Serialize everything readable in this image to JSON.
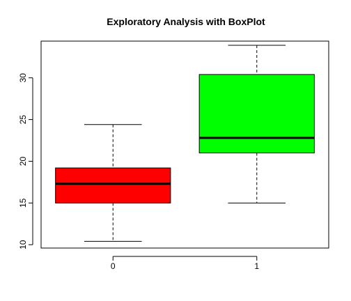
{
  "chart_data": {
    "type": "boxplot",
    "title": "Exploratory Analysis with BoxPlot",
    "xlabel": "",
    "ylabel": "",
    "ylim": [
      9.6,
      34.4
    ],
    "yticks": [
      10,
      15,
      20,
      25,
      30
    ],
    "categories": [
      "0",
      "1"
    ],
    "boxes": [
      {
        "label": "0",
        "min": 10.4,
        "q1": 15.0,
        "median": 17.3,
        "q3": 19.2,
        "max": 24.4,
        "color": "#ff0000"
      },
      {
        "label": "1",
        "min": 15.0,
        "q1": 21.0,
        "median": 22.8,
        "q3": 30.4,
        "max": 33.9,
        "color": "#00ff00"
      }
    ],
    "grid": false,
    "legend": "none"
  }
}
